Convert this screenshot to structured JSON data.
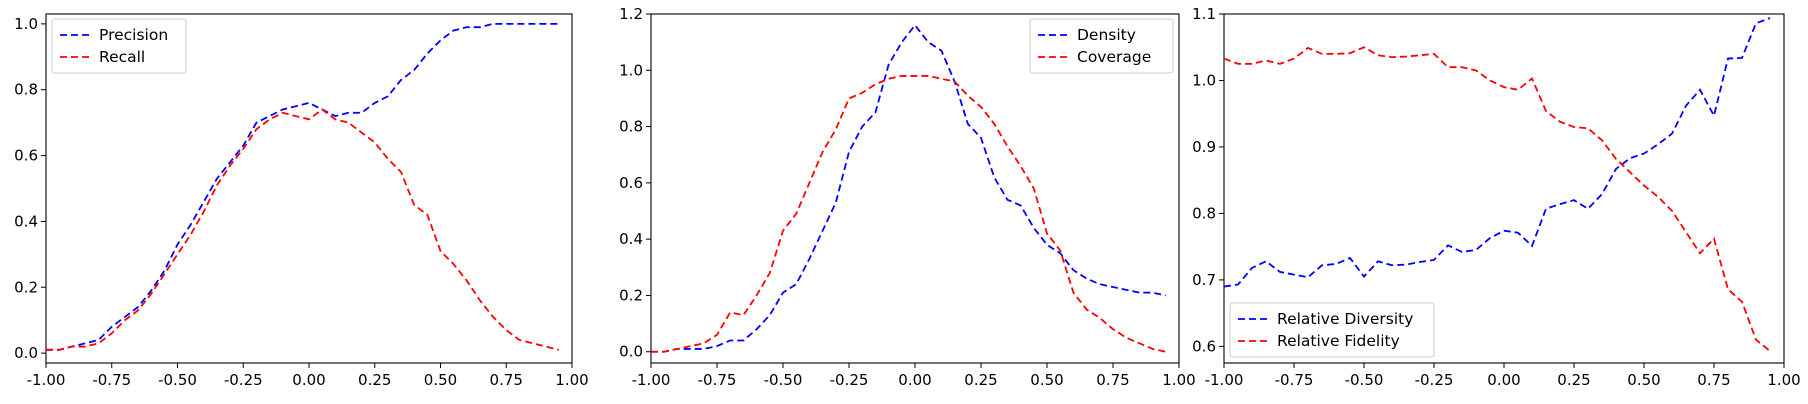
{
  "chart_data": [
    {
      "type": "line",
      "xlim": [
        -1.0,
        1.0
      ],
      "ylim": [
        -0.03,
        1.03
      ],
      "xticks": [
        "-1.00",
        "-0.75",
        "-0.50",
        "-0.25",
        "0.00",
        "0.25",
        "0.50",
        "0.75",
        "1.00"
      ],
      "yticks": [
        "0.0",
        "0.2",
        "0.4",
        "0.6",
        "0.8",
        "1.0"
      ],
      "legend_position": "upper-left",
      "x": [
        -1.0,
        -0.95,
        -0.9,
        -0.85,
        -0.8,
        -0.75,
        -0.7,
        -0.65,
        -0.6,
        -0.55,
        -0.5,
        -0.45,
        -0.4,
        -0.35,
        -0.3,
        -0.25,
        -0.2,
        -0.15,
        -0.1,
        -0.05,
        0.0,
        0.05,
        0.1,
        0.15,
        0.2,
        0.25,
        0.3,
        0.35,
        0.4,
        0.45,
        0.5,
        0.55,
        0.6,
        0.65,
        0.7,
        0.75,
        0.8,
        0.85,
        0.9,
        0.95
      ],
      "series": [
        {
          "name": "Precision",
          "color": "#0000ff",
          "values": [
            0.01,
            0.01,
            0.02,
            0.03,
            0.04,
            0.08,
            0.11,
            0.14,
            0.19,
            0.25,
            0.33,
            0.39,
            0.46,
            0.53,
            0.58,
            0.63,
            0.7,
            0.72,
            0.74,
            0.75,
            0.76,
            0.74,
            0.72,
            0.73,
            0.73,
            0.76,
            0.78,
            0.83,
            0.86,
            0.91,
            0.95,
            0.98,
            0.99,
            0.99,
            1.0,
            1.0,
            1.0,
            1.0,
            1.0,
            1.0
          ]
        },
        {
          "name": "Recall",
          "color": "#ff0000",
          "values": [
            0.01,
            0.01,
            0.02,
            0.02,
            0.03,
            0.06,
            0.1,
            0.13,
            0.18,
            0.24,
            0.3,
            0.36,
            0.43,
            0.51,
            0.57,
            0.62,
            0.68,
            0.71,
            0.73,
            0.72,
            0.71,
            0.74,
            0.71,
            0.7,
            0.67,
            0.64,
            0.59,
            0.55,
            0.45,
            0.42,
            0.31,
            0.27,
            0.22,
            0.16,
            0.11,
            0.07,
            0.04,
            0.03,
            0.02,
            0.01
          ]
        }
      ]
    },
    {
      "type": "line",
      "xlim": [
        -1.0,
        1.0
      ],
      "ylim": [
        -0.04,
        1.2
      ],
      "xticks": [
        "-1.00",
        "-0.75",
        "-0.50",
        "-0.25",
        "0.00",
        "0.25",
        "0.50",
        "0.75",
        "1.00"
      ],
      "yticks": [
        "0.0",
        "0.2",
        "0.4",
        "0.6",
        "0.8",
        "1.0",
        "1.2"
      ],
      "legend_position": "upper-right",
      "x": [
        -1.0,
        -0.95,
        -0.9,
        -0.85,
        -0.8,
        -0.75,
        -0.7,
        -0.65,
        -0.6,
        -0.55,
        -0.5,
        -0.45,
        -0.4,
        -0.35,
        -0.3,
        -0.25,
        -0.2,
        -0.15,
        -0.1,
        -0.05,
        0.0,
        0.05,
        0.1,
        0.15,
        0.2,
        0.25,
        0.3,
        0.35,
        0.4,
        0.45,
        0.5,
        0.55,
        0.6,
        0.65,
        0.7,
        0.75,
        0.8,
        0.85,
        0.9,
        0.95
      ],
      "series": [
        {
          "name": "Density",
          "color": "#0000ff",
          "values": [
            0.0,
            0.0,
            0.01,
            0.01,
            0.01,
            0.02,
            0.04,
            0.04,
            0.08,
            0.13,
            0.21,
            0.24,
            0.33,
            0.43,
            0.53,
            0.71,
            0.8,
            0.85,
            1.02,
            1.1,
            1.16,
            1.1,
            1.07,
            0.96,
            0.81,
            0.76,
            0.62,
            0.54,
            0.52,
            0.44,
            0.38,
            0.35,
            0.29,
            0.26,
            0.24,
            0.23,
            0.22,
            0.21,
            0.21,
            0.2
          ]
        },
        {
          "name": "Coverage",
          "color": "#ff0000",
          "values": [
            0.0,
            0.0,
            0.01,
            0.02,
            0.03,
            0.06,
            0.14,
            0.13,
            0.2,
            0.28,
            0.43,
            0.49,
            0.6,
            0.71,
            0.79,
            0.9,
            0.92,
            0.95,
            0.97,
            0.98,
            0.98,
            0.98,
            0.97,
            0.96,
            0.91,
            0.87,
            0.81,
            0.73,
            0.66,
            0.58,
            0.42,
            0.36,
            0.21,
            0.15,
            0.12,
            0.08,
            0.05,
            0.03,
            0.01,
            0.0
          ]
        }
      ]
    },
    {
      "type": "line",
      "xlim": [
        -1.0,
        1.0
      ],
      "ylim": [
        0.575,
        1.1
      ],
      "xticks": [
        "-1.00",
        "-0.75",
        "-0.50",
        "-0.25",
        "0.00",
        "0.25",
        "0.50",
        "0.75",
        "1.00"
      ],
      "yticks": [
        "0.6",
        "0.7",
        "0.8",
        "0.9",
        "1.0",
        "1.1"
      ],
      "legend_position": "lower-left",
      "x": [
        -1.0,
        -0.95,
        -0.9,
        -0.85,
        -0.8,
        -0.75,
        -0.7,
        -0.65,
        -0.6,
        -0.55,
        -0.5,
        -0.45,
        -0.4,
        -0.35,
        -0.3,
        -0.25,
        -0.2,
        -0.15,
        -0.1,
        -0.05,
        0.0,
        0.05,
        0.1,
        0.15,
        0.2,
        0.25,
        0.3,
        0.35,
        0.4,
        0.45,
        0.5,
        0.55,
        0.6,
        0.65,
        0.7,
        0.75,
        0.8,
        0.85,
        0.9,
        0.95
      ],
      "series": [
        {
          "name": "Relative Diversity",
          "color": "#0000ff",
          "values": [
            0.69,
            0.693,
            0.718,
            0.728,
            0.712,
            0.708,
            0.704,
            0.722,
            0.724,
            0.733,
            0.705,
            0.728,
            0.722,
            0.723,
            0.727,
            0.73,
            0.752,
            0.742,
            0.745,
            0.763,
            0.774,
            0.771,
            0.751,
            0.807,
            0.814,
            0.82,
            0.807,
            0.829,
            0.867,
            0.883,
            0.89,
            0.904,
            0.92,
            0.962,
            0.986,
            0.947,
            1.033,
            1.034,
            1.086,
            1.094
          ]
        },
        {
          "name": "Relative Fidelity",
          "color": "#ff0000",
          "values": [
            1.033,
            1.025,
            1.025,
            1.03,
            1.025,
            1.033,
            1.049,
            1.04,
            1.04,
            1.041,
            1.05,
            1.038,
            1.035,
            1.036,
            1.038,
            1.04,
            1.02,
            1.02,
            1.015,
            1.0,
            0.99,
            0.986,
            1.003,
            0.954,
            0.938,
            0.93,
            0.928,
            0.91,
            0.882,
            0.862,
            0.842,
            0.825,
            0.804,
            0.772,
            0.74,
            0.762,
            0.686,
            0.667,
            0.61,
            0.593
          ]
        }
      ]
    }
  ]
}
